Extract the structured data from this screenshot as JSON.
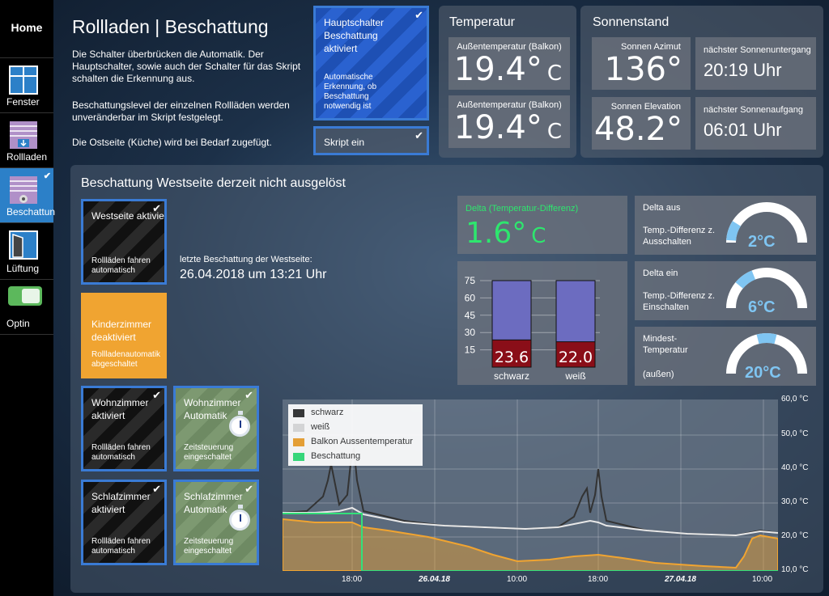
{
  "sidebar": {
    "home": "Home",
    "items": [
      {
        "label": "Fenster"
      },
      {
        "label": "Rollladen"
      },
      {
        "label": "Beschattun"
      },
      {
        "label": "Lüftung"
      },
      {
        "label": "Optin"
      }
    ]
  },
  "header": {
    "title": "Rollladen | Beschattung",
    "para1": "Die Schalter überbrücken die Automatik. Der Hauptschalter, sowie auch der Schalter für das Skript schalten die Erkennung aus.",
    "para2": "Beschattungslevel der einzelnen Rollläden werden unveränderbar im Skript festgelegt.",
    "para3": "Die Ostseite (Küche) wird bei Bedarf zugefügt."
  },
  "main_switch": {
    "title": "Hauptschalter Beschattung aktiviert",
    "sub": "Automatische Erkennung, ob Beschattung notwendig ist",
    "script": "Skript ein"
  },
  "temperatur": {
    "title": "Temperatur",
    "tiles": [
      {
        "label": "Außentemperatur (Balkon)",
        "value": "19.4°",
        "unit": "C"
      },
      {
        "label": "Außentemperatur (Balkon)",
        "value": "19.4°",
        "unit": "C"
      }
    ]
  },
  "sonnenstand": {
    "title": "Sonnenstand",
    "azimut_label": "Sonnen Azimut",
    "azimut_value": "136°",
    "untergang_label": "nächster Sonnenuntergang",
    "untergang_value": "20:19 Uhr",
    "elevation_label": "Sonnen Elevation",
    "elevation_value": "48.2°",
    "aufgang_label": "nächster Sonnenaufgang",
    "aufgang_value": "06:01 Uhr"
  },
  "west": {
    "title": "Beschattung Westseite derzeit nicht ausgelöst",
    "last_label": "letzte Beschattung der Westseite:",
    "last_value": "26.04.2018 um 13:21 Uhr",
    "switches": [
      {
        "title": "Westseite aktiviert",
        "sub": "Rollläden fahren automatisch"
      },
      {
        "title": "Kinderzimmer deaktiviert",
        "sub": "Rollladenautomatik abgeschaltet"
      },
      {
        "title": "Wohnzimmer aktiviert",
        "sub": "Rollläden fahren automatisch"
      },
      {
        "title": "Wohnzimmer Automatik",
        "sub": "Zeitsteuerung eingeschaltet"
      },
      {
        "title": "Schlafzimmer aktiviert",
        "sub": "Rollläden fahren automatisch"
      },
      {
        "title": "Schlafzimmer Automatik",
        "sub": "Zeitsteuerung eingeschaltet"
      }
    ]
  },
  "delta": {
    "label": "Delta (Temperatur-Differenz)",
    "value": "1.6°",
    "unit": "C",
    "color": "#2ee66e"
  },
  "gauges": [
    {
      "title": "Delta aus",
      "sub": "Temp.-Differenz z. Ausschalten",
      "value": "2°C",
      "level": 0.1
    },
    {
      "title": "Delta ein",
      "sub": "Temp.-Differenz z. Einschalten",
      "value": "6°C",
      "level": 0.3
    },
    {
      "title": "Mindest-Temperatur",
      "sub": "(außen)",
      "value": "20°C",
      "level": 0.5
    }
  ],
  "chart_data": [
    {
      "type": "bar",
      "categories": [
        "schwarz",
        "weiß"
      ],
      "values": [
        23.6,
        22.0
      ],
      "labels": [
        "23.6",
        "22.0"
      ],
      "yticks": [
        "75",
        "60",
        "45",
        "30",
        "15"
      ],
      "ylim": [
        0,
        75
      ]
    },
    {
      "type": "line",
      "series": [
        {
          "name": "schwarz",
          "color": "#333333"
        },
        {
          "name": "weiß",
          "color": "#e0e0e0"
        },
        {
          "name": "Balkon Aussentemperatur",
          "color": "#f0a431"
        },
        {
          "name": "Beschattung",
          "color": "#33e07a"
        }
      ],
      "xticks": [
        "18:00",
        "26.04.18",
        "10:00",
        "18:00",
        "27.04.18",
        "10:00"
      ],
      "yticks": [
        "60,0 °C",
        "50,0 °C",
        "40,0 °C",
        "30,0 °C",
        "20,0 °C",
        "10,0 °C"
      ],
      "ylim": [
        10,
        60
      ]
    }
  ]
}
